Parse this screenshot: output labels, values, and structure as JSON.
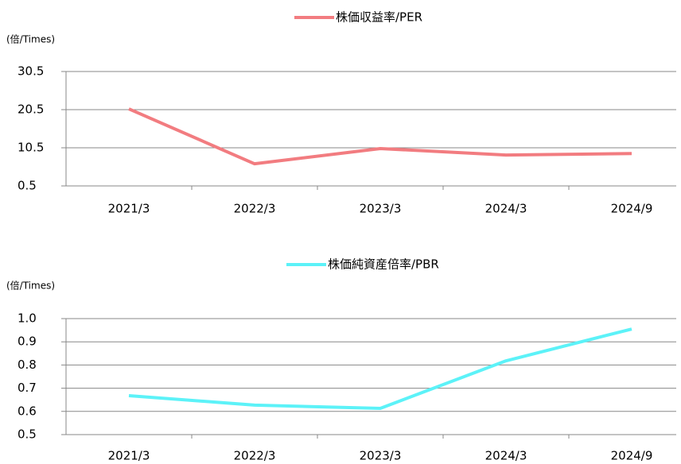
{
  "chart_data": [
    {
      "type": "line",
      "title": "株価収益率/PER",
      "y_label": "(倍/Times)",
      "categories": [
        "2021/3",
        "2022/3",
        "2023/3",
        "2024/3",
        "2024/9"
      ],
      "series": [
        {
          "name": "株価収益率/PER",
          "color": "#f27c80",
          "values": [
            20.7,
            6.3,
            10.3,
            8.6,
            9.0
          ]
        }
      ],
      "ylim": [
        0.5,
        30.5
      ],
      "yticks": [
        0.5,
        10.5,
        20.5,
        30.5
      ],
      "grid": true
    },
    {
      "type": "line",
      "title": "株価純資産倍率/PBR",
      "y_label": "(倍/Times)",
      "categories": [
        "2021/3",
        "2022/3",
        "2023/3",
        "2024/3",
        "2024/9"
      ],
      "series": [
        {
          "name": "株価純資産倍率/PBR",
          "color": "#5cf2f8",
          "values": [
            0.668,
            0.627,
            0.613,
            0.818,
            0.955
          ]
        }
      ],
      "ylim": [
        0.5,
        1.0
      ],
      "yticks": [
        0.5,
        0.6,
        0.7,
        0.8,
        0.9,
        {
          "value": 1,
          "label": "1.0"
        }
      ],
      "grid": true
    }
  ]
}
